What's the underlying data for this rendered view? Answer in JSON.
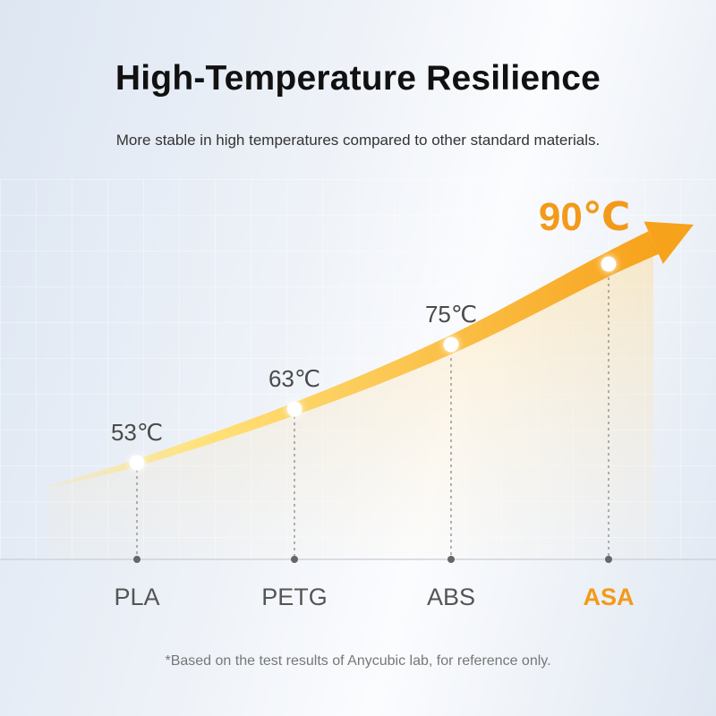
{
  "header": {
    "title": "High-Temperature Resilience",
    "subtitle": "More stable in high temperatures compared to other standard materials."
  },
  "footer": {
    "note": "*Based on the test results of Anycubic lab, for reference only."
  },
  "colors": {
    "accent": "#f39a1a",
    "curve_start": "#ffe27a",
    "curve_end": "#f7a21b",
    "label": "#4a4a4a",
    "axis": "#cfd3da"
  },
  "chart_data": {
    "type": "line",
    "title": "High-Temperature Resilience",
    "xlabel": "",
    "ylabel": "",
    "unit": "℃",
    "categories": [
      "PLA",
      "PETG",
      "ABS",
      "ASA"
    ],
    "values": [
      53,
      63,
      75,
      90
    ],
    "data_labels": [
      "53℃",
      "63℃",
      "75℃",
      "90℃"
    ],
    "highlight": "ASA",
    "ylim": [
      35,
      100
    ],
    "grid": true,
    "legend": "none"
  }
}
